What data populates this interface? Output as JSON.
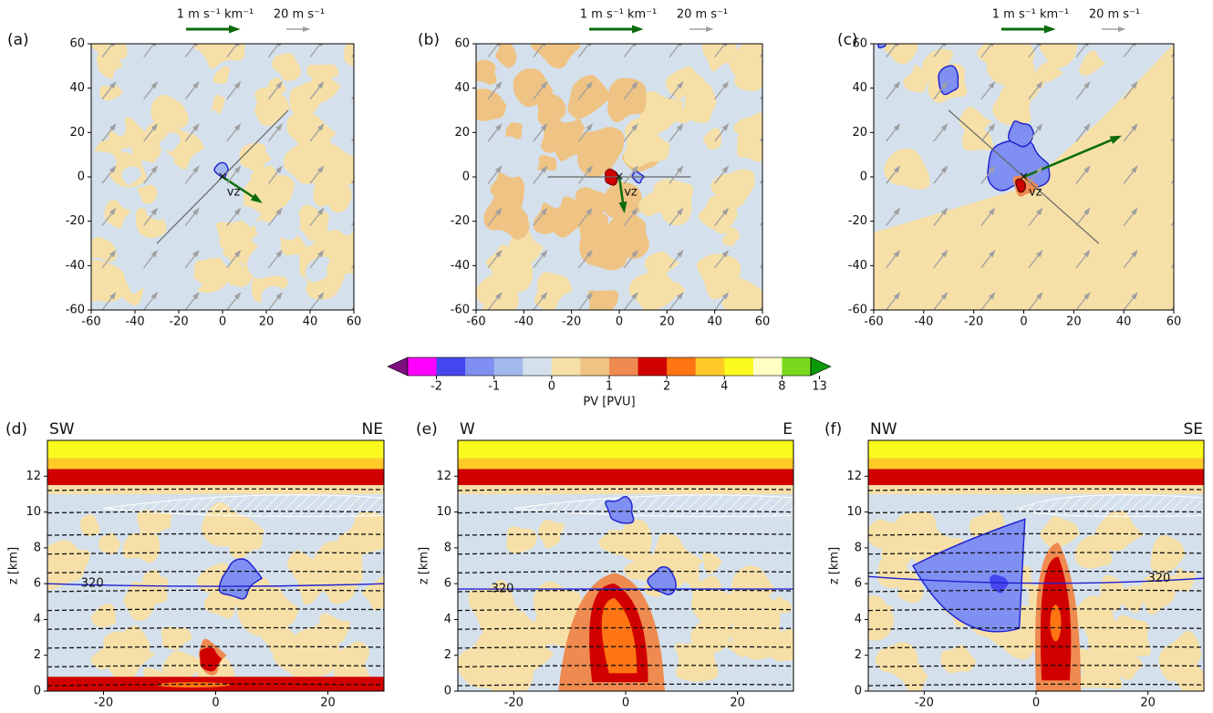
{
  "chart_data": [
    {
      "type": "plan",
      "panel": "(a)",
      "shear_scale": "1 m s⁻¹ km⁻¹",
      "wind_scale": "20 m s⁻¹",
      "annotation": "vz",
      "xlim": [
        -60,
        60
      ],
      "ylim": [
        -60,
        60
      ],
      "xticks": [
        -60,
        -40,
        -20,
        0,
        20,
        40,
        60
      ],
      "yticks": [
        -60,
        -40,
        -20,
        0,
        20,
        40,
        60
      ]
    },
    {
      "type": "plan",
      "panel": "(b)",
      "shear_scale": "1 m s⁻¹ km⁻¹",
      "wind_scale": "20 m s⁻¹",
      "annotation": "vz",
      "xlim": [
        -60,
        60
      ],
      "ylim": [
        -60,
        60
      ],
      "xticks": [
        -60,
        -40,
        -20,
        0,
        20,
        40,
        60
      ],
      "yticks": [
        -60,
        -40,
        -20,
        0,
        20,
        40,
        60
      ]
    },
    {
      "type": "plan",
      "panel": "(c)",
      "shear_scale": "1 m s⁻¹ km⁻¹",
      "wind_scale": "20 m s⁻¹",
      "annotation": "vz",
      "xlim": [
        -60,
        60
      ],
      "ylim": [
        -60,
        60
      ],
      "xticks": [
        -60,
        -40,
        -20,
        0,
        20,
        40,
        60
      ],
      "yticks": [
        -60,
        -40,
        -20,
        0,
        20,
        40,
        60
      ]
    },
    {
      "type": "colorbar",
      "label": "PV [PVU]",
      "ticks": [
        -2,
        -1,
        0,
        1,
        2,
        4,
        8,
        13
      ],
      "colors": [
        "#7d0f80",
        "#ff00ff",
        "#4646f0",
        "#7f8ff2",
        "#a3b8ee",
        "#d4e0eb",
        "#f6e0a8",
        "#efc384",
        "#ef8a50",
        "#d10000",
        "#ff7514",
        "#ffc927",
        "#fafa1e",
        "#ffffc4",
        "#79d91f",
        "#0a9a0a"
      ]
    },
    {
      "type": "section",
      "panel": "(d)",
      "left_label": "SW",
      "right_label": "NE",
      "ylabel": "z [km]",
      "contour_label": "320",
      "xlim": [
        -30,
        30
      ],
      "ylim": [
        0,
        14
      ],
      "xticks": [
        -20,
        0,
        20
      ],
      "yticks": [
        0,
        2,
        4,
        6,
        8,
        10,
        12
      ]
    },
    {
      "type": "section",
      "panel": "(e)",
      "left_label": "W",
      "right_label": "E",
      "ylabel": "z [km]",
      "contour_label": "320",
      "xlim": [
        -30,
        30
      ],
      "ylim": [
        0,
        14
      ],
      "xticks": [
        -20,
        0,
        20
      ],
      "yticks": [
        0,
        2,
        4,
        6,
        8,
        10,
        12
      ]
    },
    {
      "type": "section",
      "panel": "(f)",
      "left_label": "NW",
      "right_label": "SE",
      "ylabel": "z [km]",
      "contour_label": "320",
      "xlim": [
        -30,
        30
      ],
      "ylim": [
        0,
        14
      ],
      "xticks": [
        -20,
        0,
        20
      ],
      "yticks": [
        0,
        2,
        4,
        6,
        8,
        10,
        12
      ]
    }
  ]
}
